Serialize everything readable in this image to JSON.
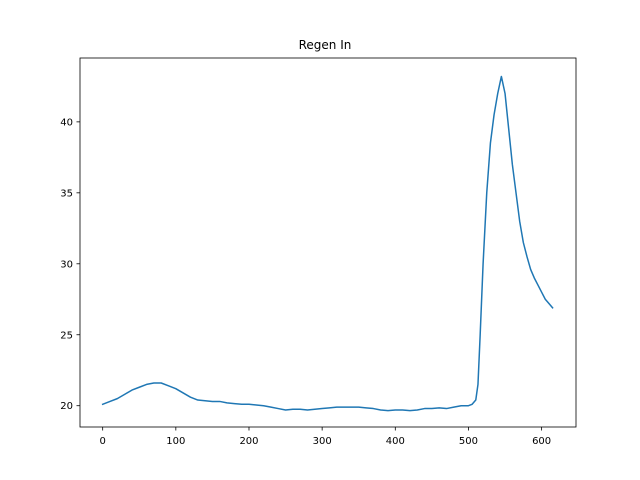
{
  "chart_data": {
    "type": "line",
    "title": "Regen In",
    "xlabel": "",
    "ylabel": "",
    "xlim": [
      -31,
      647
    ],
    "ylim": [
      18.5,
      44.5
    ],
    "xticks": [
      0,
      100,
      200,
      300,
      400,
      500,
      600
    ],
    "yticks": [
      20,
      25,
      30,
      35,
      40
    ],
    "grid": false,
    "series": [
      {
        "color": "#1f77b4",
        "x": [
          0,
          10,
          20,
          30,
          40,
          50,
          60,
          70,
          80,
          90,
          100,
          110,
          120,
          130,
          140,
          150,
          160,
          170,
          180,
          190,
          200,
          210,
          220,
          230,
          240,
          250,
          260,
          270,
          280,
          290,
          300,
          310,
          320,
          330,
          340,
          350,
          360,
          370,
          380,
          390,
          400,
          410,
          420,
          430,
          440,
          450,
          460,
          470,
          480,
          490,
          500,
          505,
          510,
          513,
          516,
          520,
          525,
          530,
          535,
          540,
          545,
          550,
          555,
          560,
          565,
          570,
          575,
          580,
          585,
          590,
          595,
          600,
          605,
          610,
          615
        ],
        "y": [
          20.1,
          20.3,
          20.5,
          20.8,
          21.1,
          21.3,
          21.5,
          21.6,
          21.6,
          21.4,
          21.2,
          20.9,
          20.6,
          20.4,
          20.35,
          20.3,
          20.3,
          20.2,
          20.15,
          20.1,
          20.1,
          20.05,
          20.0,
          19.9,
          19.8,
          19.7,
          19.75,
          19.75,
          19.7,
          19.75,
          19.8,
          19.85,
          19.9,
          19.9,
          19.9,
          19.9,
          19.85,
          19.8,
          19.7,
          19.65,
          19.7,
          19.7,
          19.65,
          19.7,
          19.8,
          19.8,
          19.85,
          19.8,
          19.9,
          20.0,
          20.0,
          20.1,
          20.4,
          21.5,
          25.0,
          30.0,
          35.0,
          38.5,
          40.5,
          42.0,
          43.2,
          42.0,
          39.5,
          37.0,
          35.0,
          33.0,
          31.5,
          30.5,
          29.6,
          29.0,
          28.5,
          28.0,
          27.5,
          27.2,
          26.9
        ]
      }
    ]
  }
}
